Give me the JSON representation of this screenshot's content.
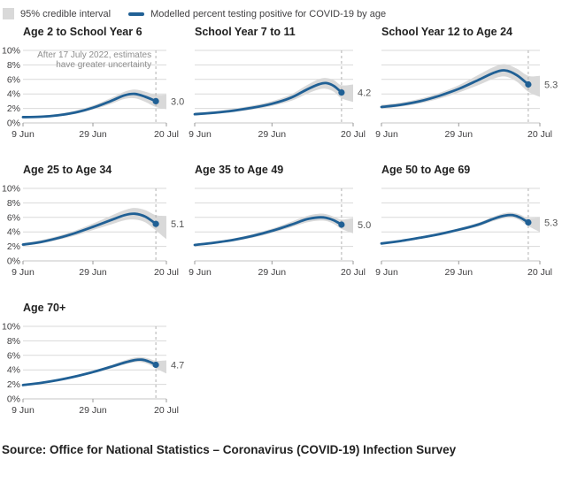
{
  "legend": {
    "band_label": "95% credible interval",
    "line_label": "Modelled percent testing positive for COVID-19 by age"
  },
  "footer": {
    "source": "Source: Office for National Statistics – Coronavirus (COVID-19) Infection Survey"
  },
  "colors": {
    "line": "#206095",
    "band": "#d9d9d9",
    "grid": "#d9d9d9",
    "baseline": "#c6c6c6",
    "tick": "#999999",
    "dash": "#b1b1b1",
    "axis_text": "#414042",
    "value_text": "#555555",
    "annotation_text": "#8e8e8e"
  },
  "chart_data": {
    "type": "line",
    "title": "Modelled percent testing positive for COVID-19 by age",
    "x_domain_days": [
      0,
      41
    ],
    "x_ticks": [
      {
        "day": 0,
        "label": "9 Jun"
      },
      {
        "day": 20,
        "label": "29 Jun"
      },
      {
        "day": 41,
        "label": "20 Jul"
      }
    ],
    "y_ticks": [
      0,
      2,
      4,
      6,
      8,
      10
    ],
    "y_tick_labels": [
      "0%",
      "2%",
      "4%",
      "6%",
      "8%",
      "10%"
    ],
    "ylim": [
      0,
      10
    ],
    "y_unit": "%",
    "dashed_line_day": 38,
    "dashed_line_date": "17 July 2022",
    "grid": true,
    "legend_position": "top",
    "charts": [
      {
        "title": "Age 2 to School Year 6",
        "show_y_labels": true,
        "end_label": "3.0",
        "annotation": [
          "After 17 July 2022, estimates",
          "have greater uncertainty"
        ],
        "points": [
          {
            "day": 0,
            "value": 0.8,
            "lo": 0.68,
            "hi": 0.95
          },
          {
            "day": 5,
            "value": 0.85,
            "lo": 0.72,
            "hi": 1.0
          },
          {
            "day": 10,
            "value": 1.05,
            "lo": 0.9,
            "hi": 1.25
          },
          {
            "day": 15,
            "value": 1.45,
            "lo": 1.25,
            "hi": 1.7
          },
          {
            "day": 20,
            "value": 2.1,
            "lo": 1.85,
            "hi": 2.4
          },
          {
            "day": 25,
            "value": 3.0,
            "lo": 2.6,
            "hi": 3.4
          },
          {
            "day": 29,
            "value": 3.8,
            "lo": 3.3,
            "hi": 4.3
          },
          {
            "day": 32,
            "value": 4.0,
            "lo": 3.4,
            "hi": 4.6
          },
          {
            "day": 35,
            "value": 3.6,
            "lo": 2.9,
            "hi": 4.3
          },
          {
            "day": 38,
            "value": 3.0,
            "lo": 2.2,
            "hi": 3.9
          },
          {
            "day": 41,
            "lo": 1.9,
            "hi": 3.9
          }
        ]
      },
      {
        "title": "School Year 7 to 11",
        "show_y_labels": false,
        "end_label": "4.2",
        "points": [
          {
            "day": 0,
            "value": 1.2,
            "lo": 1.05,
            "hi": 1.4
          },
          {
            "day": 5,
            "value": 1.4,
            "lo": 1.22,
            "hi": 1.6
          },
          {
            "day": 10,
            "value": 1.7,
            "lo": 1.5,
            "hi": 1.95
          },
          {
            "day": 15,
            "value": 2.1,
            "lo": 1.85,
            "hi": 2.4
          },
          {
            "day": 20,
            "value": 2.65,
            "lo": 2.35,
            "hi": 3.0
          },
          {
            "day": 25,
            "value": 3.5,
            "lo": 3.05,
            "hi": 3.95
          },
          {
            "day": 29,
            "value": 4.6,
            "lo": 4.0,
            "hi": 5.2
          },
          {
            "day": 32,
            "value": 5.3,
            "lo": 4.6,
            "hi": 6.0
          },
          {
            "day": 34,
            "value": 5.5,
            "lo": 4.7,
            "hi": 6.2
          },
          {
            "day": 36,
            "value": 5.1,
            "lo": 4.3,
            "hi": 5.9
          },
          {
            "day": 38,
            "value": 4.2,
            "lo": 3.4,
            "hi": 5.2
          },
          {
            "day": 41,
            "lo": 2.9,
            "hi": 5.3
          }
        ]
      },
      {
        "title": "School Year 12 to Age 24",
        "show_y_labels": false,
        "end_label": "5.3",
        "points": [
          {
            "day": 0,
            "value": 2.2,
            "lo": 1.95,
            "hi": 2.5
          },
          {
            "day": 5,
            "value": 2.5,
            "lo": 2.25,
            "hi": 2.8
          },
          {
            "day": 10,
            "value": 3.0,
            "lo": 2.7,
            "hi": 3.35
          },
          {
            "day": 15,
            "value": 3.75,
            "lo": 3.35,
            "hi": 4.15
          },
          {
            "day": 20,
            "value": 4.7,
            "lo": 4.2,
            "hi": 5.2
          },
          {
            "day": 25,
            "value": 5.9,
            "lo": 5.2,
            "hi": 6.6
          },
          {
            "day": 29,
            "value": 6.9,
            "lo": 6.1,
            "hi": 7.7
          },
          {
            "day": 32,
            "value": 7.25,
            "lo": 6.4,
            "hi": 8.1
          },
          {
            "day": 35,
            "value": 6.6,
            "lo": 5.7,
            "hi": 7.5
          },
          {
            "day": 38,
            "value": 5.3,
            "lo": 4.3,
            "hi": 6.5
          },
          {
            "day": 41,
            "lo": 3.6,
            "hi": 6.5
          }
        ]
      },
      {
        "title": "Age 25 to Age 34",
        "show_y_labels": true,
        "end_label": "5.1",
        "points": [
          {
            "day": 0,
            "value": 2.25,
            "lo": 2.05,
            "hi": 2.45
          },
          {
            "day": 5,
            "value": 2.6,
            "lo": 2.4,
            "hi": 2.85
          },
          {
            "day": 10,
            "value": 3.15,
            "lo": 2.9,
            "hi": 3.45
          },
          {
            "day": 15,
            "value": 3.85,
            "lo": 3.5,
            "hi": 4.2
          },
          {
            "day": 20,
            "value": 4.7,
            "lo": 4.25,
            "hi": 5.15
          },
          {
            "day": 25,
            "value": 5.6,
            "lo": 5.0,
            "hi": 6.2
          },
          {
            "day": 29,
            "value": 6.3,
            "lo": 5.6,
            "hi": 7.0
          },
          {
            "day": 32,
            "value": 6.5,
            "lo": 5.7,
            "hi": 7.3
          },
          {
            "day": 35,
            "value": 6.1,
            "lo": 5.3,
            "hi": 7.0
          },
          {
            "day": 38,
            "value": 5.1,
            "lo": 4.2,
            "hi": 6.3
          },
          {
            "day": 41,
            "lo": 3.0,
            "hi": 6.2
          }
        ]
      },
      {
        "title": "Age 35 to Age 49",
        "show_y_labels": false,
        "end_label": "5.0",
        "points": [
          {
            "day": 0,
            "value": 2.2,
            "lo": 2.05,
            "hi": 2.35
          },
          {
            "day": 5,
            "value": 2.5,
            "lo": 2.33,
            "hi": 2.68
          },
          {
            "day": 10,
            "value": 2.9,
            "lo": 2.7,
            "hi": 3.1
          },
          {
            "day": 15,
            "value": 3.45,
            "lo": 3.2,
            "hi": 3.7
          },
          {
            "day": 20,
            "value": 4.15,
            "lo": 3.85,
            "hi": 4.45
          },
          {
            "day": 25,
            "value": 5.0,
            "lo": 4.65,
            "hi": 5.4
          },
          {
            "day": 29,
            "value": 5.75,
            "lo": 5.3,
            "hi": 6.2
          },
          {
            "day": 32,
            "value": 6.0,
            "lo": 5.55,
            "hi": 6.5
          },
          {
            "day": 34,
            "value": 5.95,
            "lo": 5.5,
            "hi": 6.45
          },
          {
            "day": 36,
            "value": 5.6,
            "lo": 5.1,
            "hi": 6.1
          },
          {
            "day": 38,
            "value": 5.0,
            "lo": 4.4,
            "hi": 5.7
          },
          {
            "day": 41,
            "lo": 3.8,
            "hi": 5.9
          }
        ]
      },
      {
        "title": "Age 50 to Age 69",
        "show_y_labels": false,
        "end_label": "5.3",
        "points": [
          {
            "day": 0,
            "value": 2.4,
            "lo": 2.28,
            "hi": 2.52
          },
          {
            "day": 5,
            "value": 2.75,
            "lo": 2.6,
            "hi": 2.9
          },
          {
            "day": 10,
            "value": 3.2,
            "lo": 3.05,
            "hi": 3.35
          },
          {
            "day": 15,
            "value": 3.7,
            "lo": 3.5,
            "hi": 3.9
          },
          {
            "day": 20,
            "value": 4.3,
            "lo": 4.1,
            "hi": 4.5
          },
          {
            "day": 25,
            "value": 5.0,
            "lo": 4.75,
            "hi": 5.25
          },
          {
            "day": 29,
            "value": 5.8,
            "lo": 5.5,
            "hi": 6.1
          },
          {
            "day": 32,
            "value": 6.25,
            "lo": 5.9,
            "hi": 6.6
          },
          {
            "day": 34,
            "value": 6.3,
            "lo": 5.95,
            "hi": 6.65
          },
          {
            "day": 36,
            "value": 5.95,
            "lo": 5.55,
            "hi": 6.35
          },
          {
            "day": 38,
            "value": 5.3,
            "lo": 4.8,
            "hi": 5.9
          },
          {
            "day": 41,
            "lo": 4.0,
            "hi": 6.0
          }
        ]
      },
      {
        "title": "Age 70+",
        "show_y_labels": true,
        "end_label": "4.7",
        "points": [
          {
            "day": 0,
            "value": 1.9,
            "lo": 1.8,
            "hi": 2.0
          },
          {
            "day": 5,
            "value": 2.2,
            "lo": 2.1,
            "hi": 2.32
          },
          {
            "day": 10,
            "value": 2.6,
            "lo": 2.47,
            "hi": 2.73
          },
          {
            "day": 15,
            "value": 3.1,
            "lo": 2.95,
            "hi": 3.25
          },
          {
            "day": 20,
            "value": 3.7,
            "lo": 3.52,
            "hi": 3.88
          },
          {
            "day": 25,
            "value": 4.4,
            "lo": 4.18,
            "hi": 4.62
          },
          {
            "day": 29,
            "value": 5.0,
            "lo": 4.75,
            "hi": 5.3
          },
          {
            "day": 32,
            "value": 5.35,
            "lo": 5.05,
            "hi": 5.7
          },
          {
            "day": 34,
            "value": 5.4,
            "lo": 5.05,
            "hi": 5.75
          },
          {
            "day": 36,
            "value": 5.15,
            "lo": 4.75,
            "hi": 5.55
          },
          {
            "day": 38,
            "value": 4.7,
            "lo": 4.2,
            "hi": 5.25
          },
          {
            "day": 41,
            "lo": 3.5,
            "hi": 5.3
          }
        ]
      }
    ]
  }
}
